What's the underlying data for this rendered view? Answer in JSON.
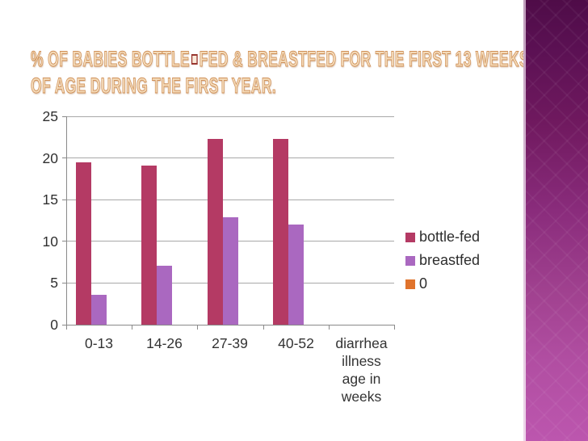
{
  "slide": {
    "title_line1_part1": "% OF BABIES BOTTLE",
    "title_line1_part2": "FED & BREASTFED FOR THE FIRST 13 WEEKS",
    "title_line2": "OF AGE DURING THE FIRST YEAR."
  },
  "chart_data": {
    "type": "bar",
    "title": "",
    "xlabel": "",
    "ylabel": "",
    "categories": [
      "0-13",
      "14-26",
      "27-39",
      "40-52",
      "diarrhea illness age in weeks"
    ],
    "series": [
      {
        "name": "bottle-fed",
        "color": "#b43a64",
        "values": [
          19.5,
          19.1,
          22.3,
          22.3,
          0
        ]
      },
      {
        "name": "breastfed",
        "color": "#aa68c0",
        "values": [
          3.6,
          7.1,
          12.9,
          12.0,
          0
        ]
      },
      {
        "name": "0",
        "color": "#e0732c",
        "values": [
          0,
          0,
          0,
          0,
          0
        ]
      }
    ],
    "ylim": [
      0,
      25
    ],
    "yticks": [
      0,
      5,
      10,
      15,
      20,
      25
    ],
    "grid": true,
    "legend_position": "right",
    "axis_color": "#8a8a8a",
    "gridline_color": "#a8a8a8"
  }
}
